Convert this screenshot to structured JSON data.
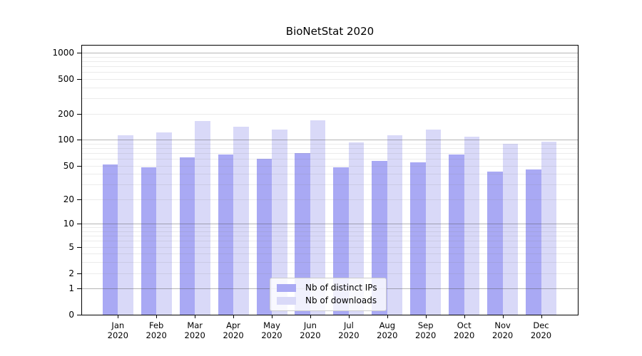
{
  "chart_data": {
    "type": "bar",
    "title": "BioNetStat 2020",
    "categories": [
      "Jan 2020",
      "Feb 2020",
      "Mar 2020",
      "Apr 2020",
      "May 2020",
      "Jun 2020",
      "Jul 2020",
      "Aug 2020",
      "Sep 2020",
      "Oct 2020",
      "Nov 2020",
      "Dec 2020"
    ],
    "series": [
      {
        "name": "Nb of distinct IPs",
        "color": "#a9a9f4",
        "values": [
          52,
          48,
          63,
          68,
          60,
          70,
          48,
          57,
          55,
          67,
          43,
          45
        ]
      },
      {
        "name": "Nb of downloads",
        "color": "#d9d9f8",
        "values": [
          113,
          121,
          164,
          141,
          130,
          167,
          93,
          113,
          131,
          108,
          90,
          95
        ]
      }
    ],
    "xlabel": "",
    "ylabel": "",
    "yscale": "log1p",
    "yticks": [
      1000,
      500,
      200,
      100,
      50,
      20,
      10,
      5,
      2,
      1,
      0
    ],
    "ylim": [
      0,
      1200
    ],
    "grid": true,
    "legend_position": "lower center"
  }
}
